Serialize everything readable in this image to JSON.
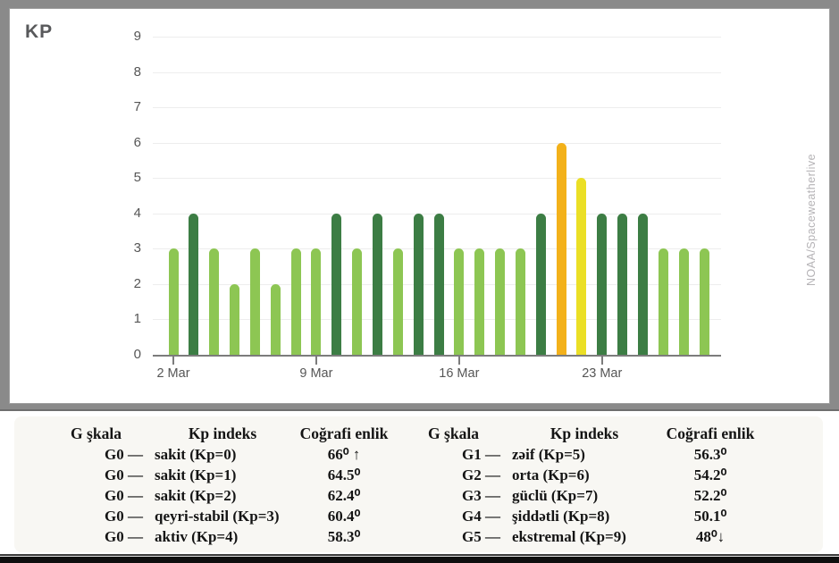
{
  "chart_data": {
    "type": "bar",
    "title": "KP",
    "source_label": "NOAA/Spaceweatherlive",
    "xlabel": "",
    "ylabel": "",
    "ylim": [
      0,
      9
    ],
    "yticks": [
      0,
      1,
      2,
      3,
      4,
      5,
      6,
      7,
      8,
      9
    ],
    "grid": true,
    "legend": "none",
    "x": [
      "2 Mar",
      "3 Mar",
      "4 Mar",
      "5 Mar",
      "6 Mar",
      "7 Mar",
      "8 Mar",
      "9 Mar",
      "10 Mar",
      "11 Mar",
      "12 Mar",
      "13 Mar",
      "14 Mar",
      "15 Mar",
      "16 Mar",
      "17 Mar",
      "18 Mar",
      "19 Mar",
      "20 Mar",
      "21 Mar",
      "22 Mar",
      "23 Mar",
      "24 Mar",
      "25 Mar",
      "26 Mar",
      "27 Mar",
      "28 Mar"
    ],
    "values": [
      3,
      4,
      3,
      2,
      3,
      2,
      3,
      3,
      4,
      3,
      4,
      3,
      4,
      4,
      3,
      3,
      3,
      3,
      4,
      6,
      5,
      4,
      4,
      4,
      3,
      3,
      3
    ],
    "xticks": [
      {
        "i": 0,
        "label": "2 Mar"
      },
      {
        "i": 7,
        "label": "9 Mar"
      },
      {
        "i": 14,
        "label": "16 Mar"
      },
      {
        "i": 21,
        "label": "23 Mar"
      }
    ],
    "color_map": {
      "kp_low": "#8dc653",
      "kp4": "#3c7d44",
      "kp5": "#ebdf25",
      "kp6": "#f3b11a"
    }
  },
  "legend_tables": {
    "left": {
      "headers": [
        "G şkala",
        "Kp indeks",
        "Coğrafi enlik"
      ],
      "rows": [
        {
          "g": "G0 —",
          "label": "sakit (Kp=0)",
          "lat": "66⁰ ↑"
        },
        {
          "g": "G0 —",
          "label": "sakit (Kp=1)",
          "lat": "64.5⁰"
        },
        {
          "g": "G0 —",
          "label": "sakit (Kp=2)",
          "lat": "62.4⁰"
        },
        {
          "g": "G0 —",
          "label": "qeyri-stabil (Kp=3)",
          "lat": "60.4⁰"
        },
        {
          "g": "G0 —",
          "label": "aktiv (Kp=4)",
          "lat": "58.3⁰"
        }
      ]
    },
    "right": {
      "headers": [
        "G şkala",
        "Kp indeks",
        "Coğrafi enlik"
      ],
      "rows": [
        {
          "g": "G1 —",
          "label": "zəif (Kp=5)",
          "lat": "56.3⁰"
        },
        {
          "g": "G2 —",
          "label": "orta (Kp=6)",
          "lat": "54.2⁰"
        },
        {
          "g": "G3 —",
          "label": "güclü (Kp=7)",
          "lat": "52.2⁰"
        },
        {
          "g": "G4 —",
          "label": "şiddətli (Kp=8)",
          "lat": "50.1⁰"
        },
        {
          "g": "G5 —",
          "label": "ekstremal (Kp=9)",
          "lat": "48⁰↓"
        }
      ]
    }
  }
}
